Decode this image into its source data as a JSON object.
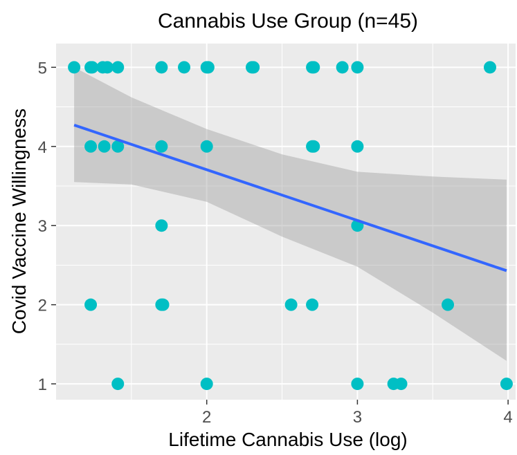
{
  "chart_data": {
    "type": "scatter",
    "title": "Cannabis Use Group (n=45)",
    "xlabel": "Lifetime Cannabis Use (log)",
    "ylabel": "Covid Vaccine Willingness",
    "xlim": [
      1.0,
      4.05
    ],
    "ylim": [
      0.8,
      5.3
    ],
    "x_ticks": [
      2,
      3,
      4
    ],
    "y_ticks": [
      1,
      2,
      3,
      4,
      5
    ],
    "grid": true,
    "legend": "none",
    "colors": {
      "panel": "#ebebeb",
      "grid": "#ffffff",
      "point": "#00bfc4",
      "line": "#3366ff",
      "ribbon": "#999999"
    },
    "points": [
      {
        "x": 1.12,
        "y": 5
      },
      {
        "x": 1.23,
        "y": 5
      },
      {
        "x": 1.24,
        "y": 5
      },
      {
        "x": 1.31,
        "y": 5
      },
      {
        "x": 1.34,
        "y": 5
      },
      {
        "x": 1.41,
        "y": 5
      },
      {
        "x": 1.7,
        "y": 5
      },
      {
        "x": 1.85,
        "y": 5
      },
      {
        "x": 2.0,
        "y": 5
      },
      {
        "x": 2.01,
        "y": 5
      },
      {
        "x": 2.3,
        "y": 5
      },
      {
        "x": 2.31,
        "y": 5
      },
      {
        "x": 2.7,
        "y": 5
      },
      {
        "x": 2.71,
        "y": 5
      },
      {
        "x": 2.9,
        "y": 5
      },
      {
        "x": 3.0,
        "y": 5
      },
      {
        "x": 3.88,
        "y": 5
      },
      {
        "x": 1.23,
        "y": 4
      },
      {
        "x": 1.32,
        "y": 4
      },
      {
        "x": 1.41,
        "y": 4
      },
      {
        "x": 1.7,
        "y": 4
      },
      {
        "x": 2.0,
        "y": 4
      },
      {
        "x": 2.7,
        "y": 4
      },
      {
        "x": 2.71,
        "y": 4
      },
      {
        "x": 3.0,
        "y": 4
      },
      {
        "x": 1.7,
        "y": 3
      },
      {
        "x": 3.0,
        "y": 3
      },
      {
        "x": 1.23,
        "y": 2
      },
      {
        "x": 1.7,
        "y": 2
      },
      {
        "x": 1.71,
        "y": 2
      },
      {
        "x": 2.56,
        "y": 2
      },
      {
        "x": 2.7,
        "y": 2
      },
      {
        "x": 3.6,
        "y": 2
      },
      {
        "x": 1.41,
        "y": 1
      },
      {
        "x": 2.0,
        "y": 1
      },
      {
        "x": 3.0,
        "y": 1
      },
      {
        "x": 3.24,
        "y": 1
      },
      {
        "x": 3.29,
        "y": 1
      },
      {
        "x": 3.99,
        "y": 1
      }
    ],
    "fit_line": {
      "x": [
        1.12,
        3.99
      ],
      "y": [
        4.27,
        2.43
      ]
    },
    "ribbon": {
      "x": [
        1.12,
        1.5,
        2.0,
        2.5,
        3.0,
        3.5,
        3.99
      ],
      "upper": [
        5.0,
        4.62,
        4.22,
        3.9,
        3.68,
        3.62,
        3.58
      ],
      "lower": [
        3.55,
        3.52,
        3.3,
        2.86,
        2.48,
        1.9,
        1.29
      ]
    }
  }
}
